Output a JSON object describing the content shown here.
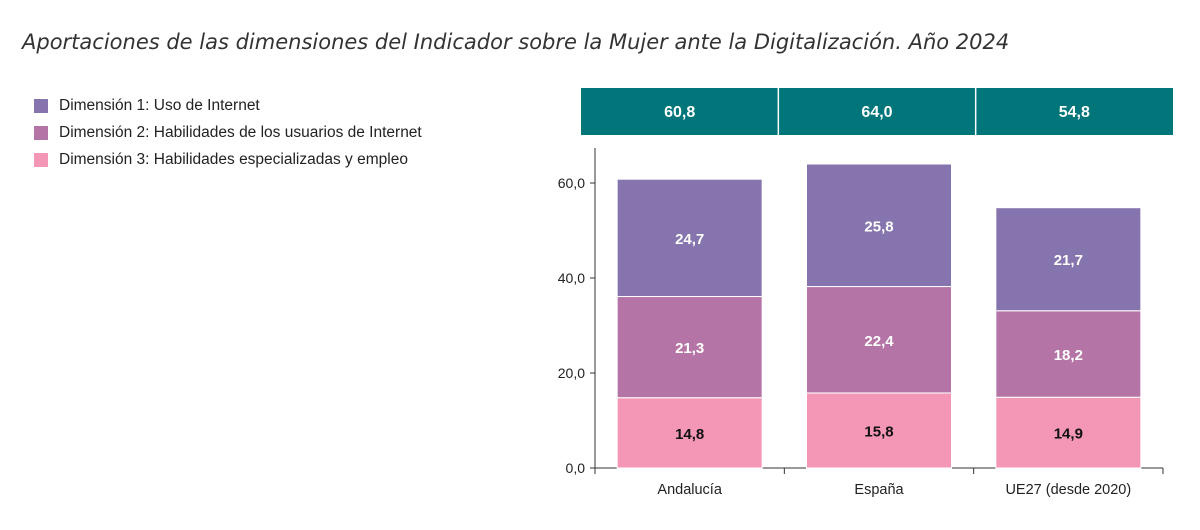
{
  "title": "Aportaciones de las dimensiones del Indicador sobre la Mujer ante la Digitalización. Año 2024",
  "colors": {
    "dim1": "#8574ad",
    "dim2": "#b474a6",
    "dim3": "#f497b6",
    "header_band": "#00757a",
    "axis": "#333333"
  },
  "legend": [
    {
      "label": "Dimensión 1: Uso de Internet",
      "color": "#8574ad"
    },
    {
      "label": "Dimensión 2: Habilidades de los usuarios de Internet",
      "color": "#b474a6"
    },
    {
      "label": "Dimensión 3: Habilidades especializadas y empleo",
      "color": "#f497b6"
    }
  ],
  "chart_data": {
    "type": "bar",
    "stacked": true,
    "categories": [
      "Andalucía",
      "España",
      "UE27 (desde 2020)"
    ],
    "totals": [
      "60,8",
      "64,0",
      "54,8"
    ],
    "series": [
      {
        "name": "Dimensión 3: Habilidades especializadas y empleo",
        "values": [
          14.8,
          15.8,
          14.9
        ],
        "labels": [
          "14,8",
          "15,8",
          "14,9"
        ],
        "color": "#f497b6",
        "label_color": "#111111"
      },
      {
        "name": "Dimensión 2: Habilidades de los usuarios de Internet",
        "values": [
          21.3,
          22.4,
          18.2
        ],
        "labels": [
          "21,3",
          "22,4",
          "18,2"
        ],
        "color": "#b474a6",
        "label_color": "#ffffff"
      },
      {
        "name": "Dimensión 1: Uso de Internet",
        "values": [
          24.7,
          25.8,
          21.7
        ],
        "labels": [
          "24,7",
          "25,8",
          "21,7"
        ],
        "color": "#8574ad",
        "label_color": "#ffffff"
      }
    ],
    "yticks": [
      0,
      20,
      40,
      60
    ],
    "ytick_labels": [
      "0,0",
      "20,0",
      "40,0",
      "60,0"
    ],
    "ylim": [
      0,
      67
    ],
    "grid": false,
    "legend_position": "top-left"
  }
}
